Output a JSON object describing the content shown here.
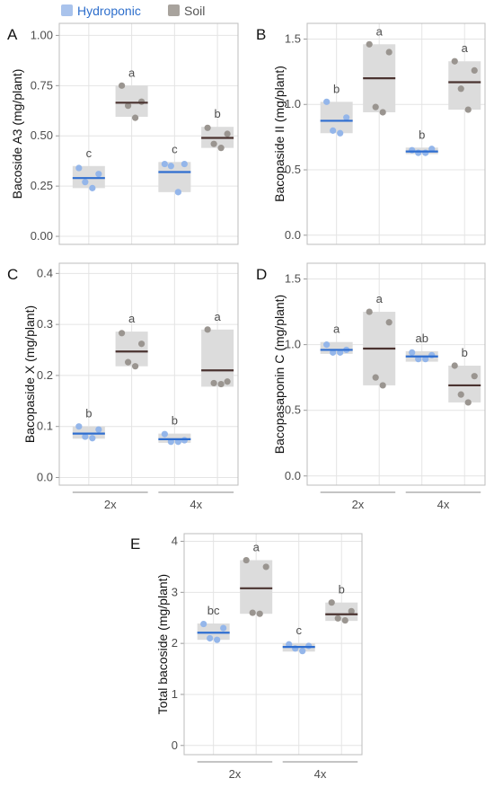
{
  "legend": [
    {
      "label": "Hydroponic",
      "color": "#a9c3ec",
      "text_color": "#2e6fcc"
    },
    {
      "label": "Soil",
      "color": "#a8a39d",
      "text_color": "#555555"
    }
  ],
  "colors": {
    "hydro_point": "#94b6ea",
    "hydro_mean": "#2f6ed0",
    "soil_point": "#9a9590",
    "soil_mean": "#4a3330",
    "box": "#dcdcdc",
    "grid": "#e4e4e4",
    "frame": "#bdbdbd"
  },
  "group_labels": [
    "2x",
    "4x"
  ],
  "chart_data": [
    {
      "type": "scatter",
      "panel": "A",
      "ylabel": "Bacoside A3 (mg/plant)",
      "ylim": [
        -0.04,
        1.06
      ],
      "yticks": [
        0.0,
        0.25,
        0.5,
        0.75,
        1.0
      ],
      "ytick_labels": [
        "0.00",
        "0.25",
        "0.50",
        "0.75",
        "1.00"
      ],
      "show_xaxis": false,
      "series": [
        {
          "name": "Hydroponic",
          "group": "2x",
          "points": [
            0.34,
            0.27,
            0.24,
            0.31
          ],
          "mean": 0.29,
          "box": [
            0.24,
            0.35
          ],
          "letter": "c"
        },
        {
          "name": "Soil",
          "group": "2x",
          "points": [
            0.75,
            0.65,
            0.59,
            0.67
          ],
          "mean": 0.665,
          "box": [
            0.595,
            0.75
          ],
          "letter": "a"
        },
        {
          "name": "Hydroponic",
          "group": "4x",
          "points": [
            0.36,
            0.35,
            0.22,
            0.36
          ],
          "mean": 0.32,
          "box": [
            0.22,
            0.37
          ],
          "letter": "c"
        },
        {
          "name": "Soil",
          "group": "4x",
          "points": [
            0.54,
            0.46,
            0.44,
            0.51
          ],
          "mean": 0.49,
          "box": [
            0.44,
            0.545
          ],
          "letter": "b"
        }
      ]
    },
    {
      "type": "scatter",
      "panel": "B",
      "ylabel": "Bacopaside II (mg/plant)",
      "ylim": [
        -0.07,
        1.62
      ],
      "yticks": [
        0.0,
        0.5,
        1.0,
        1.5
      ],
      "ytick_labels": [
        "0.0",
        "0.5",
        "1.0",
        "1.5"
      ],
      "show_xaxis": false,
      "series": [
        {
          "name": "Hydroponic",
          "group": "2x",
          "points": [
            1.02,
            0.8,
            0.78,
            0.9
          ],
          "mean": 0.875,
          "box": [
            0.78,
            1.02
          ],
          "letter": "b"
        },
        {
          "name": "Soil",
          "group": "2x",
          "points": [
            1.46,
            0.98,
            0.94,
            1.4
          ],
          "mean": 1.2,
          "box": [
            0.94,
            1.46
          ],
          "letter": "a"
        },
        {
          "name": "Hydroponic",
          "group": "4x",
          "points": [
            0.65,
            0.63,
            0.63,
            0.66
          ],
          "mean": 0.64,
          "box": [
            0.62,
            0.67
          ],
          "letter": "b"
        },
        {
          "name": "Soil",
          "group": "4x",
          "points": [
            1.33,
            1.12,
            0.96,
            1.26
          ],
          "mean": 1.17,
          "box": [
            0.96,
            1.33
          ],
          "letter": "a"
        }
      ]
    },
    {
      "type": "scatter",
      "panel": "C",
      "ylabel": "Bacopaside X (mg/plant)",
      "ylim": [
        -0.015,
        0.42
      ],
      "yticks": [
        0.0,
        0.1,
        0.2,
        0.3,
        0.4
      ],
      "ytick_labels": [
        "0.0",
        "0.1",
        "0.2",
        "0.3",
        "0.4"
      ],
      "show_xaxis": true,
      "series": [
        {
          "name": "Hydroponic",
          "group": "2x",
          "points": [
            0.1,
            0.08,
            0.077,
            0.094
          ],
          "mean": 0.086,
          "box": [
            0.076,
            0.1
          ],
          "letter": "b"
        },
        {
          "name": "Soil",
          "group": "2x",
          "points": [
            0.283,
            0.226,
            0.218,
            0.262
          ],
          "mean": 0.247,
          "box": [
            0.218,
            0.286
          ],
          "letter": "a"
        },
        {
          "name": "Hydroponic",
          "group": "4x",
          "points": [
            0.085,
            0.07,
            0.07,
            0.073
          ],
          "mean": 0.075,
          "box": [
            0.068,
            0.086
          ],
          "letter": "b"
        },
        {
          "name": "Soil",
          "group": "4x",
          "points": [
            0.29,
            0.185,
            0.183,
            0.188
          ],
          "mean": 0.21,
          "box": [
            0.178,
            0.29
          ],
          "letter": "a"
        }
      ]
    },
    {
      "type": "scatter",
      "panel": "D",
      "ylabel": "Bacopasaponin C (mg/plant)",
      "ylim": [
        -0.07,
        1.62
      ],
      "yticks": [
        0.0,
        0.5,
        1.0,
        1.5
      ],
      "ytick_labels": [
        "0.0",
        "0.5",
        "1.0",
        "1.5"
      ],
      "show_xaxis": true,
      "series": [
        {
          "name": "Hydroponic",
          "group": "2x",
          "points": [
            1.0,
            0.94,
            0.94,
            0.96
          ],
          "mean": 0.96,
          "box": [
            0.93,
            1.02
          ],
          "letter": "a"
        },
        {
          "name": "Soil",
          "group": "2x",
          "points": [
            1.25,
            0.75,
            0.69,
            1.17
          ],
          "mean": 0.97,
          "box": [
            0.69,
            1.25
          ],
          "letter": "a"
        },
        {
          "name": "Hydroponic",
          "group": "4x",
          "points": [
            0.94,
            0.89,
            0.89,
            0.92
          ],
          "mean": 0.91,
          "box": [
            0.87,
            0.95
          ],
          "letter": "ab"
        },
        {
          "name": "Soil",
          "group": "4x",
          "points": [
            0.84,
            0.62,
            0.56,
            0.76
          ],
          "mean": 0.69,
          "box": [
            0.56,
            0.84
          ],
          "letter": "b"
        }
      ]
    },
    {
      "type": "scatter",
      "panel": "E",
      "ylabel": "Total bacoside (mg/plant)",
      "ylim": [
        -0.18,
        4.15
      ],
      "yticks": [
        0,
        1,
        2,
        3,
        4
      ],
      "ytick_labels": [
        "0",
        "1",
        "2",
        "3",
        "4"
      ],
      "show_xaxis": true,
      "series": [
        {
          "name": "Hydroponic",
          "group": "2x",
          "points": [
            2.38,
            2.1,
            2.07,
            2.3
          ],
          "mean": 2.21,
          "box": [
            2.07,
            2.39
          ],
          "letter": "bc"
        },
        {
          "name": "Soil",
          "group": "2x",
          "points": [
            3.63,
            2.6,
            2.58,
            3.5
          ],
          "mean": 3.08,
          "box": [
            2.58,
            3.63
          ],
          "letter": "a"
        },
        {
          "name": "Hydroponic",
          "group": "4x",
          "points": [
            1.98,
            1.9,
            1.85,
            1.95
          ],
          "mean": 1.93,
          "box": [
            1.84,
            2.0
          ],
          "letter": "c"
        },
        {
          "name": "Soil",
          "group": "4x",
          "points": [
            2.8,
            2.49,
            2.45,
            2.63
          ],
          "mean": 2.57,
          "box": [
            2.44,
            2.8
          ],
          "letter": "b"
        }
      ]
    }
  ]
}
